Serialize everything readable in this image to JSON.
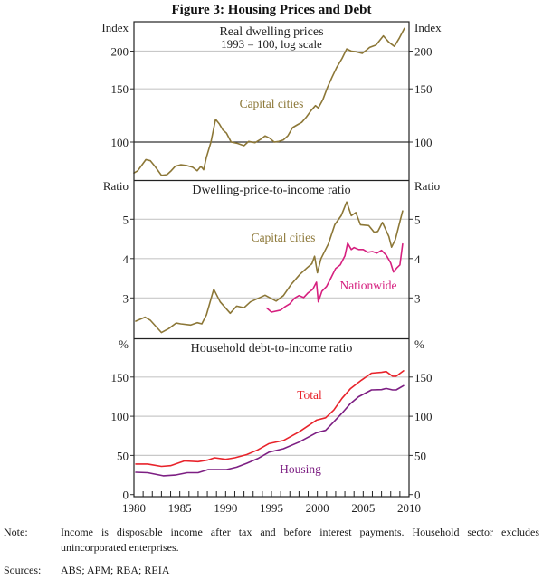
{
  "figure": {
    "title": "Figure 3: Housing Prices and Debt"
  },
  "notes": {
    "note_label": "Note:",
    "note_text": "Income is disposable income after tax and before interest payments. Household sector excludes unincorporated enterprises.",
    "sources_label": "Sources:",
    "sources_text": "ABS; APM; RBA; REIA"
  },
  "chart_data": [
    {
      "type": "line",
      "title": "Real dwelling prices",
      "subtitle": "1993 = 100, log scale",
      "ylabel_left": "Index",
      "ylabel_right": "Index",
      "yscale": "log",
      "ylim": [
        75,
        250
      ],
      "yticks": [
        100,
        150,
        200
      ],
      "xlim": [
        1980,
        2010
      ],
      "grid": true,
      "series": [
        {
          "name": "Capital cities",
          "color": "#8C7737",
          "x": [
            1980.0,
            1980.4,
            1981.0,
            1981.3,
            1981.8,
            1982.3,
            1983.0,
            1983.6,
            1984.0,
            1984.5,
            1985.1,
            1985.8,
            1986.4,
            1986.9,
            1987.3,
            1987.6,
            1987.9,
            1988.4,
            1988.9,
            1989.3,
            1989.7,
            1990.1,
            1990.6,
            1991.3,
            1992.0,
            1992.5,
            1993.2,
            1993.8,
            1994.3,
            1994.8,
            1995.3,
            1995.8,
            1996.3,
            1996.8,
            1997.3,
            1997.8,
            1998.3,
            1998.8,
            1999.3,
            1999.8,
            2000.1,
            2000.6,
            2001.1,
            2001.6,
            2002.1,
            2002.7,
            2003.2,
            2003.7,
            2004.2,
            2004.9,
            2005.3,
            2005.7,
            2006.4,
            2007.2,
            2007.8,
            2008.4,
            2008.9,
            2009.5
          ],
          "values": [
            79,
            80.3,
            85,
            87.5,
            86.7,
            83,
            77.6,
            78,
            80,
            83.1,
            84.1,
            83.5,
            82.5,
            80.3,
            83.1,
            81,
            89.1,
            100,
            119,
            115,
            109.7,
            107,
            100,
            99,
            97.3,
            100.5,
            99.5,
            102,
            104.8,
            103,
            100,
            100.5,
            101.7,
            105,
            111.7,
            114,
            116.2,
            121,
            127,
            132,
            129.6,
            138,
            151.6,
            164,
            176.3,
            189.2,
            203.4,
            200,
            199,
            196.6,
            201,
            205.7,
            209.6,
            224.8,
            214,
            207.4,
            220,
            238
          ]
        }
      ]
    },
    {
      "type": "line",
      "title": "Dwelling-price-to-income ratio",
      "ylabel_left": "Ratio",
      "ylabel_right": "Ratio",
      "ylim": [
        2,
        6
      ],
      "yticks": [
        3,
        4,
        5
      ],
      "xlim": [
        1980,
        2010
      ],
      "grid": true,
      "series": [
        {
          "name": "Capital cities",
          "color": "#8C7737",
          "x": [
            1980.2,
            1981.2,
            1981.8,
            1983.0,
            1983.8,
            1984.6,
            1985.1,
            1986.2,
            1986.9,
            1987.4,
            1987.9,
            1988.7,
            1989.4,
            1990.5,
            1991.2,
            1992.0,
            1992.7,
            1994.3,
            1995.5,
            1996.3,
            1997.1,
            1998.1,
            1998.9,
            1999.4,
            1999.7,
            2000.0,
            2000.4,
            2001.2,
            2001.9,
            2002.6,
            2003.2,
            2003.7,
            2004.2,
            2004.7,
            2005.6,
            2006.2,
            2006.6,
            2007.1,
            2007.8,
            2008.1,
            2008.5,
            2009.3
          ],
          "values": [
            2.41,
            2.51,
            2.43,
            2.12,
            2.22,
            2.36,
            2.34,
            2.31,
            2.37,
            2.34,
            2.57,
            3.22,
            2.9,
            2.61,
            2.79,
            2.75,
            2.9,
            3.07,
            2.92,
            3.06,
            3.33,
            3.6,
            3.77,
            3.87,
            4.06,
            3.64,
            4.0,
            4.37,
            4.86,
            5.09,
            5.44,
            5.09,
            5.17,
            4.86,
            4.84,
            4.67,
            4.69,
            4.92,
            4.56,
            4.29,
            4.48,
            5.21
          ]
        },
        {
          "name": "Nationwide",
          "color": "#D6207F",
          "x": [
            1994.5,
            1995.0,
            1996.0,
            1996.5,
            1997.0,
            1997.5,
            1998.0,
            1998.5,
            1999.0,
            1999.5,
            1999.9,
            2000.1,
            2000.5,
            2001.0,
            2001.5,
            2002.0,
            2002.5,
            2003.0,
            2003.3,
            2003.7,
            2004.0,
            2004.5,
            2005.0,
            2005.5,
            2006.0,
            2006.5,
            2007.0,
            2007.5,
            2008.0,
            2008.3,
            2008.7,
            2009.0,
            2009.3
          ],
          "values": [
            2.74,
            2.64,
            2.69,
            2.78,
            2.85,
            2.99,
            3.06,
            3.01,
            3.13,
            3.22,
            3.4,
            2.9,
            3.17,
            3.29,
            3.52,
            3.75,
            3.84,
            4.07,
            4.39,
            4.23,
            4.28,
            4.23,
            4.23,
            4.16,
            4.18,
            4.14,
            4.21,
            4.09,
            3.89,
            3.66,
            3.77,
            3.84,
            4.37
          ]
        }
      ]
    },
    {
      "type": "line",
      "title": "Household debt-to-income ratio",
      "ylabel_left": "%",
      "ylabel_right": "%",
      "ylim": [
        0,
        200
      ],
      "yticks": [
        0,
        50,
        100,
        150
      ],
      "xlim": [
        1980,
        2010
      ],
      "xticks": [
        1980,
        1985,
        1990,
        1995,
        2000,
        2005,
        2010
      ],
      "grid": true,
      "series": [
        {
          "name": "Total",
          "color": "#E8232B",
          "x": [
            1980.2,
            1981.5,
            1983.0,
            1984.0,
            1985.5,
            1987.0,
            1988.0,
            1988.8,
            1990.0,
            1991.0,
            1992.3,
            1993.5,
            1994.7,
            1996.3,
            1998.0,
            1999.9,
            2000.9,
            2001.8,
            2002.7,
            2003.6,
            2004.8,
            2005.9,
            2007.0,
            2007.5,
            2008.2,
            2008.6,
            2009.4
          ],
          "values": [
            39,
            39,
            36,
            37,
            43,
            42,
            44,
            47,
            45,
            47,
            51,
            57,
            65,
            69,
            80,
            95,
            98,
            108,
            123,
            135,
            146,
            155,
            156,
            157,
            151,
            151,
            158
          ]
        },
        {
          "name": "Housing",
          "color": "#7D1F83",
          "x": [
            1980.2,
            1981.5,
            1983.2,
            1984.5,
            1985.8,
            1987.0,
            1988.1,
            1989.0,
            1990.1,
            1991.2,
            1992.3,
            1993.5,
            1994.7,
            1996.3,
            1998.0,
            1999.9,
            2000.9,
            2001.8,
            2002.7,
            2003.6,
            2004.5,
            2005.9,
            2007.0,
            2007.5,
            2008.2,
            2008.6,
            2009.4
          ],
          "values": [
            28.5,
            28,
            24,
            25,
            28,
            28,
            32,
            32,
            32,
            35,
            40,
            46,
            54,
            58.5,
            67,
            79,
            82,
            93,
            104,
            116,
            125,
            133.6,
            134,
            135.5,
            133.6,
            133.6,
            139
          ]
        }
      ]
    }
  ]
}
